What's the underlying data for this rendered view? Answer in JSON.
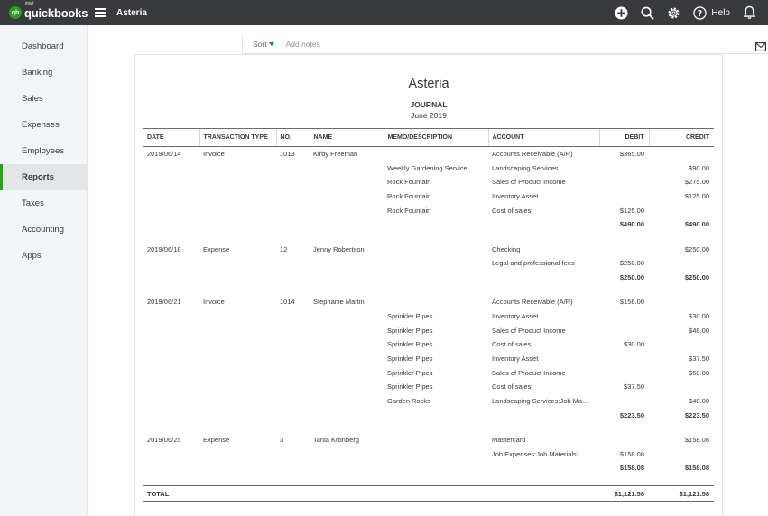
{
  "topbar": {
    "logo_brand": "quickbooks",
    "logo_intuit": "intuit",
    "logo_badge": "qb",
    "company": "Asteria",
    "help_label": "Help",
    "icons": [
      "plus-icon",
      "search-icon",
      "gear-icon",
      "help-icon",
      "bell-icon"
    ]
  },
  "sidebar": {
    "items": [
      {
        "label": "Dashboard"
      },
      {
        "label": "Banking"
      },
      {
        "label": "Sales"
      },
      {
        "label": "Expenses"
      },
      {
        "label": "Employees"
      },
      {
        "label": "Reports",
        "active": true
      },
      {
        "label": "Taxes"
      },
      {
        "label": "Accounting"
      },
      {
        "label": "Apps"
      }
    ]
  },
  "toolbar": {
    "sort_label": "Sort",
    "add_notes_label": "Add notes"
  },
  "report": {
    "company": "Asteria",
    "title": "JOURNAL",
    "period": "June 2019",
    "columns": [
      "DATE",
      "TRANSACTION TYPE",
      "NO.",
      "NAME",
      "MEMO/DESCRIPTION",
      "ACCOUNT",
      "DEBIT",
      "CREDIT"
    ],
    "groups": [
      {
        "rows": [
          {
            "date": "2019/06/14",
            "type": "Invoice",
            "no": "1013",
            "name": "Kirby Freeman",
            "memo": "",
            "account": "Accounts Receivable (A/R)",
            "debit": "$365.00",
            "credit": ""
          },
          {
            "date": "",
            "type": "",
            "no": "",
            "name": "",
            "memo": "Weekly Gardening Service",
            "account": "Landscaping Services",
            "debit": "",
            "credit": "$90.00"
          },
          {
            "date": "",
            "type": "",
            "no": "",
            "name": "",
            "memo": "Rock Fountain",
            "account": "Sales of Product Income",
            "debit": "",
            "credit": "$275.00"
          },
          {
            "date": "",
            "type": "",
            "no": "",
            "name": "",
            "memo": "Rock Fountain",
            "account": "Inventory Asset",
            "debit": "",
            "credit": "$125.00"
          },
          {
            "date": "",
            "type": "",
            "no": "",
            "name": "",
            "memo": "Rock Fountain",
            "account": "Cost of sales",
            "debit": "$125.00",
            "credit": ""
          }
        ],
        "total_debit": "$490.00",
        "total_credit": "$490.00"
      },
      {
        "rows": [
          {
            "date": "2019/06/18",
            "type": "Expense",
            "no": "12",
            "name": "Jenny Robertson",
            "memo": "",
            "account": "Checking",
            "debit": "",
            "credit": "$250.00"
          },
          {
            "date": "",
            "type": "",
            "no": "",
            "name": "",
            "memo": "",
            "account": "Legal and professional fees",
            "debit": "$250.00",
            "credit": ""
          }
        ],
        "total_debit": "$250.00",
        "total_credit": "$250.00"
      },
      {
        "rows": [
          {
            "date": "2019/06/21",
            "type": "Invoice",
            "no": "1014",
            "name": "Stephanie Martini",
            "memo": "",
            "account": "Accounts Receivable (A/R)",
            "debit": "$156.00",
            "credit": ""
          },
          {
            "date": "",
            "type": "",
            "no": "",
            "name": "",
            "memo": "Sprinkler Pipes",
            "account": "Inventory Asset",
            "debit": "",
            "credit": "$30.00"
          },
          {
            "date": "",
            "type": "",
            "no": "",
            "name": "",
            "memo": "Sprinkler Pipes",
            "account": "Sales of Product Income",
            "debit": "",
            "credit": "$48.00"
          },
          {
            "date": "",
            "type": "",
            "no": "",
            "name": "",
            "memo": "Sprinkler Pipes",
            "account": "Cost of sales",
            "debit": "$30.00",
            "credit": ""
          },
          {
            "date": "",
            "type": "",
            "no": "",
            "name": "",
            "memo": "Sprinkler Pipes",
            "account": "Inventory Asset",
            "debit": "",
            "credit": "$37.50"
          },
          {
            "date": "",
            "type": "",
            "no": "",
            "name": "",
            "memo": "Sprinkler Pipes",
            "account": "Sales of Product Income",
            "debit": "",
            "credit": "$60.00"
          },
          {
            "date": "",
            "type": "",
            "no": "",
            "name": "",
            "memo": "Sprinkler Pipes",
            "account": "Cost of sales",
            "debit": "$37.50",
            "credit": ""
          },
          {
            "date": "",
            "type": "",
            "no": "",
            "name": "",
            "memo": "Garden Rocks",
            "account": "Landscaping Services:Job Ma...",
            "debit": "",
            "credit": "$48.00"
          }
        ],
        "total_debit": "$223.50",
        "total_credit": "$223.50"
      },
      {
        "rows": [
          {
            "date": "2019/06/25",
            "type": "Expense",
            "no": "3",
            "name": "Tania Kronberg",
            "memo": "",
            "account": "Mastercard",
            "debit": "",
            "credit": "$158.08"
          },
          {
            "date": "",
            "type": "",
            "no": "",
            "name": "",
            "memo": "",
            "account": "Job Expenses:Job Materials:...",
            "debit": "$158.08",
            "credit": ""
          }
        ],
        "total_debit": "$158.08",
        "total_credit": "$158.08"
      }
    ],
    "grand_total": {
      "label": "TOTAL",
      "debit": "$1,121.58",
      "credit": "$1,121.58"
    }
  },
  "colors": {
    "brand_green": "#2ca01c",
    "topbar": "#393a3d",
    "link_blue": "#0077c5"
  }
}
